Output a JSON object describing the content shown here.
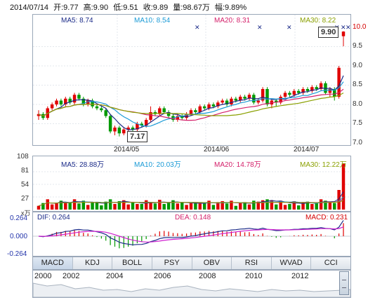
{
  "header": {
    "date": "2014/07/14",
    "open": "开:9.77",
    "high": "高:9.90",
    "low": "低:9.51",
    "close": "收:9.89",
    "volume": "量:98.67万",
    "change": "幅:9.89%"
  },
  "price_panel": {
    "ma5": "MA5: 8.74",
    "ma10": "MA10: 8.54",
    "ma20": "MA20: 8.31",
    "ma30": "MA30: 8.22",
    "y_ticks": [
      "10.0",
      "9.5",
      "9.0",
      "8.5",
      "8.0",
      "7.5",
      "7.0"
    ],
    "dates": [
      "2014/05",
      "2014/06",
      "2014/07"
    ],
    "high_callout": "9.90",
    "low_callout": "7.17"
  },
  "volume_panel": {
    "ma5": "MA5: 28.88万",
    "ma10": "MA10: 20.03万",
    "ma20": "MA20: 14.78万",
    "ma30": "MA30: 12.22万",
    "y_ticks": [
      "108",
      "81",
      "54",
      "27"
    ],
    "unit": "x万"
  },
  "macd_panel": {
    "dif": "DIF: 0.264",
    "dea": "DEA: 0.148",
    "macd": "MACD: 0.231",
    "y_ticks": [
      "0.264",
      "0.000",
      "-0.264"
    ]
  },
  "tabs": [
    "MACD",
    "KDJ",
    "BOLL",
    "PSY",
    "OBV",
    "RSI",
    "WVAD",
    "CCI"
  ],
  "timeline": {
    "years": [
      "2000",
      "2002",
      "2004",
      "2006",
      "2008",
      "2010",
      "2012"
    ]
  },
  "colors": {
    "up": "#e00000",
    "down": "#009900",
    "ma5": "#1a2a88",
    "ma10": "#1a9ad6",
    "ma20": "#d4206a",
    "ma30": "#8aa000"
  },
  "chart_data": {
    "type": "candlestick",
    "x_range": [
      "2014/04",
      "2014/07/14"
    ],
    "ylim": [
      7.0,
      10.0
    ],
    "candles": [
      [
        7.7,
        7.75,
        7.6,
        7.85
      ],
      [
        7.75,
        7.65,
        7.6,
        7.8
      ],
      [
        7.65,
        7.9,
        7.6,
        7.95
      ],
      [
        7.9,
        8.0,
        7.85,
        8.05
      ],
      [
        8.0,
        8.1,
        7.95,
        8.15
      ],
      [
        8.1,
        8.0,
        7.95,
        8.15
      ],
      [
        8.0,
        8.15,
        7.95,
        8.2
      ],
      [
        8.15,
        8.05,
        8.0,
        8.2
      ],
      [
        8.05,
        8.25,
        8.0,
        8.3
      ],
      [
        8.25,
        8.15,
        8.1,
        8.3
      ],
      [
        8.15,
        8.0,
        7.95,
        8.2
      ],
      [
        8.0,
        8.1,
        7.95,
        8.15
      ],
      [
        8.1,
        7.95,
        7.9,
        8.15
      ],
      [
        7.95,
        7.9,
        7.85,
        8.0
      ],
      [
        7.9,
        7.85,
        7.8,
        7.95
      ],
      [
        7.85,
        7.7,
        7.65,
        7.9
      ],
      [
        7.7,
        7.3,
        7.25,
        7.75
      ],
      [
        7.3,
        7.4,
        7.2,
        7.45
      ],
      [
        7.4,
        7.25,
        7.17,
        7.45
      ],
      [
        7.25,
        7.35,
        7.2,
        7.4
      ],
      [
        7.35,
        7.4,
        7.3,
        7.45
      ],
      [
        7.4,
        7.35,
        7.3,
        7.45
      ],
      [
        7.35,
        7.5,
        7.3,
        7.55
      ],
      [
        7.5,
        7.45,
        7.4,
        7.55
      ],
      [
        7.45,
        7.6,
        7.4,
        7.65
      ],
      [
        7.6,
        7.8,
        7.55,
        7.95
      ],
      [
        7.8,
        7.75,
        7.7,
        7.85
      ],
      [
        7.75,
        7.9,
        7.7,
        7.95
      ],
      [
        7.9,
        7.8,
        7.75,
        7.95
      ],
      [
        7.8,
        7.7,
        7.65,
        7.85
      ],
      [
        7.7,
        7.6,
        7.55,
        7.75
      ],
      [
        7.6,
        7.7,
        7.55,
        7.75
      ],
      [
        7.7,
        7.65,
        7.6,
        7.75
      ],
      [
        7.65,
        7.75,
        7.6,
        7.8
      ],
      [
        7.75,
        7.85,
        7.7,
        7.9
      ],
      [
        7.85,
        7.8,
        7.75,
        7.9
      ],
      [
        7.8,
        7.95,
        7.75,
        8.0
      ],
      [
        7.95,
        7.9,
        7.85,
        8.0
      ],
      [
        7.9,
        8.0,
        7.85,
        8.05
      ],
      [
        8.0,
        7.95,
        7.9,
        8.05
      ],
      [
        7.95,
        8.05,
        7.9,
        8.1
      ],
      [
        8.05,
        8.1,
        8.0,
        8.15
      ],
      [
        8.1,
        8.0,
        7.95,
        8.15
      ],
      [
        8.0,
        8.15,
        7.95,
        8.2
      ],
      [
        8.15,
        8.1,
        8.05,
        8.2
      ],
      [
        8.1,
        8.2,
        8.05,
        8.25
      ],
      [
        8.2,
        8.15,
        8.1,
        8.25
      ],
      [
        8.15,
        8.25,
        8.1,
        8.3
      ],
      [
        8.25,
        8.05,
        8.0,
        8.3
      ],
      [
        8.05,
        8.1,
        8.0,
        8.15
      ],
      [
        8.1,
        8.4,
        8.05,
        8.45
      ],
      [
        8.4,
        8.0,
        7.95,
        8.45
      ],
      [
        8.0,
        8.1,
        7.9,
        8.15
      ],
      [
        8.1,
        8.05,
        7.95,
        8.15
      ],
      [
        8.05,
        8.2,
        8.0,
        8.25
      ],
      [
        8.2,
        8.3,
        8.15,
        8.35
      ],
      [
        8.3,
        8.25,
        8.2,
        8.35
      ],
      [
        8.25,
        8.35,
        8.2,
        8.4
      ],
      [
        8.35,
        8.3,
        8.25,
        8.4
      ],
      [
        8.3,
        8.4,
        8.25,
        8.45
      ],
      [
        8.4,
        8.35,
        8.3,
        8.45
      ],
      [
        8.35,
        8.45,
        8.3,
        8.5
      ],
      [
        8.45,
        8.4,
        8.35,
        8.5
      ],
      [
        8.4,
        8.55,
        8.35,
        8.6
      ],
      [
        8.55,
        8.3,
        8.25,
        8.6
      ],
      [
        8.3,
        8.4,
        8.2,
        8.45
      ],
      [
        8.4,
        8.2,
        8.1,
        8.45
      ],
      [
        8.2,
        8.95,
        8.15,
        9.0
      ],
      [
        9.77,
        9.89,
        9.51,
        9.9
      ]
    ]
  }
}
